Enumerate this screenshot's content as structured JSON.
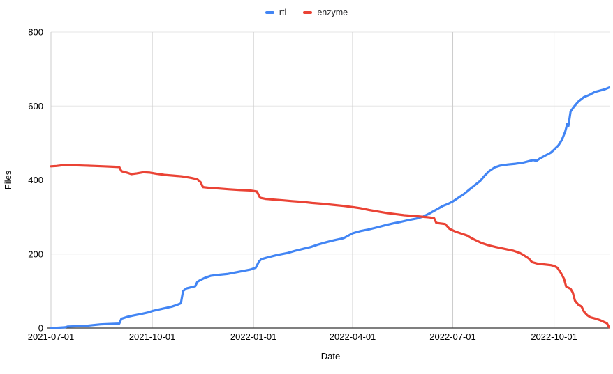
{
  "page": {
    "background": "#ffffff"
  },
  "legend": {
    "items": [
      {
        "label": "rtl",
        "color": "#4285f4"
      },
      {
        "label": "enzyme",
        "color": "#ea4335"
      }
    ]
  },
  "chart_data": {
    "type": "line",
    "title": "",
    "xlabel": "Date",
    "ylabel": "Files",
    "xlim": [
      "2021-07-01",
      "2022-11-21"
    ],
    "ylim": [
      0,
      800
    ],
    "x_tick_labels": [
      "2021-07-01",
      "2021-10-01",
      "2022-01-01",
      "2022-04-01",
      "2022-07-01",
      "2022-10-01"
    ],
    "y_tick_labels": [
      0,
      200,
      400,
      600,
      800
    ],
    "grid": true,
    "legend_position": "top-center",
    "style": {
      "h_grid_color": "#e6e6e6",
      "v_grid_color": "#cccccc",
      "axis_line_color": "#333333",
      "tick_label_color": "#000000",
      "line_width": 3.2
    },
    "series": [
      {
        "name": "rtl",
        "color": "#4285f4",
        "points": [
          [
            "2021-07-01",
            0
          ],
          [
            "2021-07-08",
            1
          ],
          [
            "2021-07-14",
            2
          ],
          [
            "2021-07-16",
            4
          ],
          [
            "2021-07-26",
            5
          ],
          [
            "2021-08-02",
            6
          ],
          [
            "2021-08-08",
            8
          ],
          [
            "2021-08-15",
            10
          ],
          [
            "2021-08-22",
            11
          ],
          [
            "2021-09-01",
            12
          ],
          [
            "2021-09-03",
            25
          ],
          [
            "2021-09-08",
            30
          ],
          [
            "2021-09-14",
            34
          ],
          [
            "2021-09-21",
            38
          ],
          [
            "2021-09-27",
            42
          ],
          [
            "2021-10-01",
            46
          ],
          [
            "2021-10-07",
            50
          ],
          [
            "2021-10-13",
            54
          ],
          [
            "2021-10-19",
            58
          ],
          [
            "2021-10-24",
            63
          ],
          [
            "2021-10-27",
            67
          ],
          [
            "2021-10-29",
            100
          ],
          [
            "2021-11-01",
            107
          ],
          [
            "2021-11-05",
            110
          ],
          [
            "2021-11-09",
            113
          ],
          [
            "2021-11-11",
            125
          ],
          [
            "2021-11-14",
            130
          ],
          [
            "2021-11-18",
            136
          ],
          [
            "2021-11-23",
            141
          ],
          [
            "2021-12-01",
            144
          ],
          [
            "2021-12-08",
            146
          ],
          [
            "2021-12-15",
            150
          ],
          [
            "2021-12-22",
            154
          ],
          [
            "2021-12-29",
            158
          ],
          [
            "2022-01-03",
            163
          ],
          [
            "2022-01-06",
            180
          ],
          [
            "2022-01-08",
            186
          ],
          [
            "2022-01-14",
            191
          ],
          [
            "2022-01-22",
            197
          ],
          [
            "2022-02-01",
            203
          ],
          [
            "2022-02-08",
            209
          ],
          [
            "2022-02-15",
            214
          ],
          [
            "2022-02-22",
            219
          ],
          [
            "2022-03-01",
            226
          ],
          [
            "2022-03-08",
            232
          ],
          [
            "2022-03-15",
            237
          ],
          [
            "2022-03-24",
            243
          ],
          [
            "2022-04-01",
            256
          ],
          [
            "2022-04-08",
            262
          ],
          [
            "2022-04-15",
            266
          ],
          [
            "2022-04-22",
            271
          ],
          [
            "2022-05-01",
            278
          ],
          [
            "2022-05-08",
            283
          ],
          [
            "2022-05-15",
            287
          ],
          [
            "2022-05-22",
            292
          ],
          [
            "2022-05-29",
            296
          ],
          [
            "2022-06-04",
            301
          ],
          [
            "2022-06-10",
            310
          ],
          [
            "2022-06-16",
            320
          ],
          [
            "2022-06-22",
            330
          ],
          [
            "2022-06-27",
            336
          ],
          [
            "2022-07-01",
            342
          ],
          [
            "2022-07-06",
            352
          ],
          [
            "2022-07-11",
            362
          ],
          [
            "2022-07-16",
            374
          ],
          [
            "2022-07-21",
            386
          ],
          [
            "2022-07-26",
            398
          ],
          [
            "2022-07-30",
            412
          ],
          [
            "2022-08-03",
            424
          ],
          [
            "2022-08-08",
            434
          ],
          [
            "2022-08-13",
            439
          ],
          [
            "2022-08-20",
            442
          ],
          [
            "2022-08-27",
            444
          ],
          [
            "2022-09-03",
            447
          ],
          [
            "2022-09-08",
            451
          ],
          [
            "2022-09-12",
            454
          ],
          [
            "2022-09-15",
            452
          ],
          [
            "2022-09-18",
            458
          ],
          [
            "2022-09-23",
            466
          ],
          [
            "2022-09-28",
            474
          ],
          [
            "2022-10-01",
            482
          ],
          [
            "2022-10-05",
            494
          ],
          [
            "2022-10-08",
            508
          ],
          [
            "2022-10-11",
            530
          ],
          [
            "2022-10-13",
            552
          ],
          [
            "2022-10-14",
            546
          ],
          [
            "2022-10-16",
            585
          ],
          [
            "2022-10-19",
            598
          ],
          [
            "2022-10-23",
            612
          ],
          [
            "2022-10-28",
            624
          ],
          [
            "2022-11-02",
            630
          ],
          [
            "2022-11-07",
            638
          ],
          [
            "2022-11-12",
            642
          ],
          [
            "2022-11-16",
            645
          ],
          [
            "2022-11-20",
            650
          ]
        ]
      },
      {
        "name": "enzyme",
        "color": "#ea4335",
        "points": [
          [
            "2021-07-01",
            437
          ],
          [
            "2021-07-06",
            438
          ],
          [
            "2021-07-12",
            440
          ],
          [
            "2021-07-20",
            440
          ],
          [
            "2021-08-01",
            439
          ],
          [
            "2021-08-10",
            438
          ],
          [
            "2021-08-18",
            437
          ],
          [
            "2021-08-26",
            436
          ],
          [
            "2021-09-01",
            435
          ],
          [
            "2021-09-03",
            424
          ],
          [
            "2021-09-08",
            420
          ],
          [
            "2021-09-12",
            416
          ],
          [
            "2021-09-17",
            418
          ],
          [
            "2021-09-23",
            421
          ],
          [
            "2021-09-29",
            420
          ],
          [
            "2021-10-05",
            417
          ],
          [
            "2021-10-12",
            414
          ],
          [
            "2021-10-20",
            412
          ],
          [
            "2021-10-28",
            410
          ],
          [
            "2021-11-05",
            406
          ],
          [
            "2021-11-11",
            402
          ],
          [
            "2021-11-14",
            394
          ],
          [
            "2021-11-16",
            381
          ],
          [
            "2021-11-22",
            379
          ],
          [
            "2021-12-01",
            377
          ],
          [
            "2021-12-10",
            375
          ],
          [
            "2021-12-20",
            373
          ],
          [
            "2021-12-29",
            372
          ],
          [
            "2022-01-04",
            369
          ],
          [
            "2022-01-07",
            352
          ],
          [
            "2022-01-12",
            349
          ],
          [
            "2022-01-20",
            347
          ],
          [
            "2022-01-28",
            345
          ],
          [
            "2022-02-05",
            343
          ],
          [
            "2022-02-14",
            341
          ],
          [
            "2022-02-23",
            338
          ],
          [
            "2022-03-04",
            336
          ],
          [
            "2022-03-14",
            333
          ],
          [
            "2022-03-24",
            330
          ],
          [
            "2022-04-01",
            327
          ],
          [
            "2022-04-08",
            324
          ],
          [
            "2022-04-16",
            319
          ],
          [
            "2022-04-24",
            315
          ],
          [
            "2022-05-02",
            311
          ],
          [
            "2022-05-10",
            308
          ],
          [
            "2022-05-18",
            305
          ],
          [
            "2022-05-26",
            303
          ],
          [
            "2022-06-03",
            301
          ],
          [
            "2022-06-10",
            299
          ],
          [
            "2022-06-14",
            297
          ],
          [
            "2022-06-16",
            284
          ],
          [
            "2022-06-24",
            281
          ],
          [
            "2022-06-28",
            268
          ],
          [
            "2022-07-03",
            261
          ],
          [
            "2022-07-08",
            256
          ],
          [
            "2022-07-14",
            250
          ],
          [
            "2022-07-18",
            243
          ],
          [
            "2022-07-22",
            237
          ],
          [
            "2022-07-27",
            230
          ],
          [
            "2022-08-02",
            224
          ],
          [
            "2022-08-09",
            219
          ],
          [
            "2022-08-17",
            214
          ],
          [
            "2022-08-25",
            209
          ],
          [
            "2022-08-31",
            203
          ],
          [
            "2022-09-04",
            196
          ],
          [
            "2022-09-08",
            188
          ],
          [
            "2022-09-11",
            178
          ],
          [
            "2022-09-16",
            174
          ],
          [
            "2022-09-22",
            172
          ],
          [
            "2022-09-28",
            170
          ],
          [
            "2022-10-01",
            168
          ],
          [
            "2022-10-04",
            163
          ],
          [
            "2022-10-07",
            150
          ],
          [
            "2022-10-10",
            133
          ],
          [
            "2022-10-12",
            112
          ],
          [
            "2022-10-16",
            106
          ],
          [
            "2022-10-18",
            96
          ],
          [
            "2022-10-20",
            74
          ],
          [
            "2022-10-23",
            63
          ],
          [
            "2022-10-26",
            58
          ],
          [
            "2022-10-28",
            45
          ],
          [
            "2022-10-31",
            35
          ],
          [
            "2022-11-03",
            29
          ],
          [
            "2022-11-08",
            25
          ],
          [
            "2022-11-12",
            21
          ],
          [
            "2022-11-15",
            17
          ],
          [
            "2022-11-18",
            13
          ],
          [
            "2022-11-20",
            2
          ]
        ]
      }
    ]
  }
}
